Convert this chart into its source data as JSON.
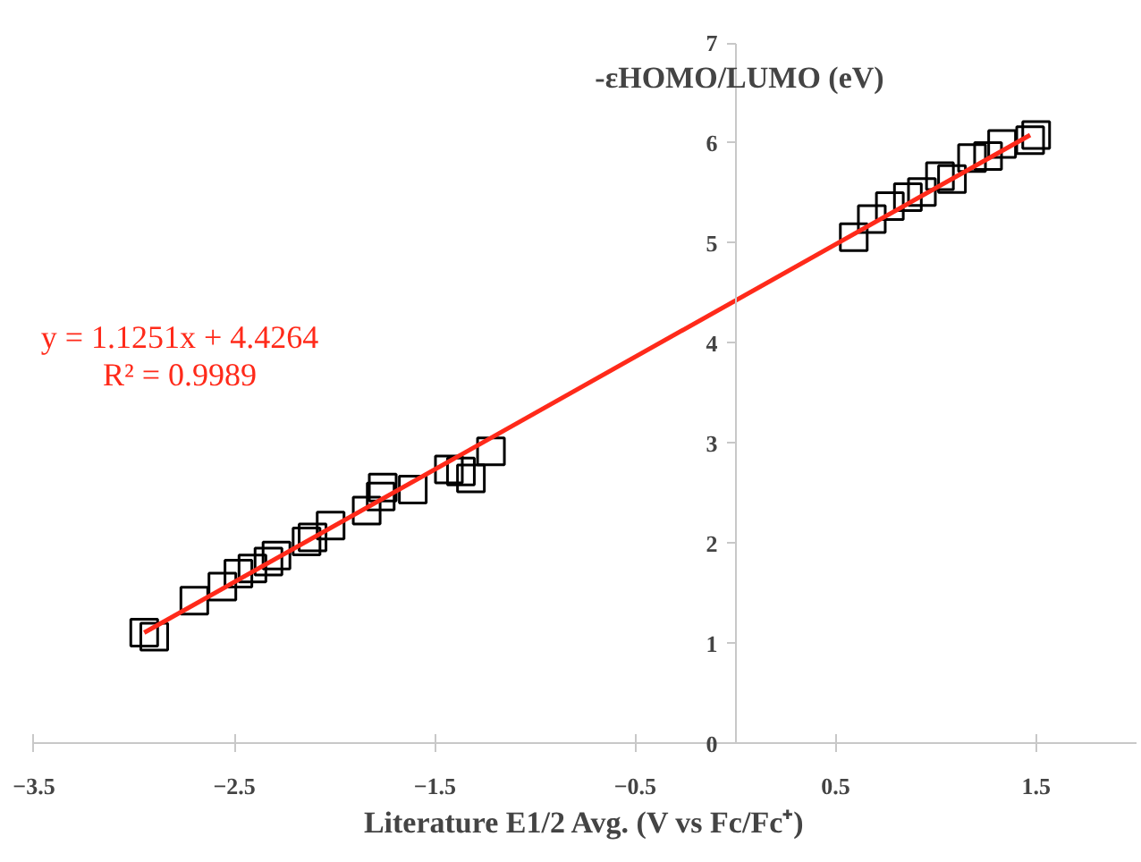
{
  "chart_data": {
    "type": "scatter",
    "xlabel": "Literature E1/2 Avg. (V vs Fc/Fc⁺)",
    "ylabel": "-εHOMO/LUMO (eV)",
    "xlim": [
      -3.5,
      2.0
    ],
    "ylim": [
      0,
      7
    ],
    "xticks": [
      -3.5,
      -2.5,
      -1.5,
      -0.5,
      0.5,
      1.5
    ],
    "yticks": [
      0,
      1,
      2,
      3,
      4,
      5,
      6,
      7
    ],
    "grid": false,
    "series": [
      {
        "marker": "square",
        "color": "#000000",
        "x": [
          -2.95,
          -2.9,
          -2.7,
          -2.56,
          -2.48,
          -2.41,
          -2.33,
          -2.29,
          -2.14,
          -2.11,
          -2.02,
          -1.84,
          -1.77,
          -1.76,
          -1.61,
          -1.43,
          -1.37,
          -1.32,
          -1.22,
          0.59,
          0.68,
          0.77,
          0.86,
          0.93,
          1.02,
          1.08,
          1.18,
          1.26,
          1.33,
          1.47,
          1.5
        ],
        "values": [
          1.11,
          1.07,
          1.43,
          1.57,
          1.7,
          1.75,
          1.82,
          1.88,
          2.02,
          2.06,
          2.18,
          2.33,
          2.47,
          2.56,
          2.54,
          2.74,
          2.72,
          2.65,
          2.92,
          5.06,
          5.24,
          5.37,
          5.46,
          5.51,
          5.67,
          5.64,
          5.85,
          5.87,
          5.99,
          6.03,
          6.08
        ]
      },
      {
        "type": "line",
        "color": "#ff2a1a",
        "x": [
          -2.95,
          1.47
        ],
        "values": [
          1.11,
          6.08
        ]
      }
    ],
    "annotations": [
      "y = 1.1251x + 4.4264",
      "R² = 0.9989"
    ]
  }
}
